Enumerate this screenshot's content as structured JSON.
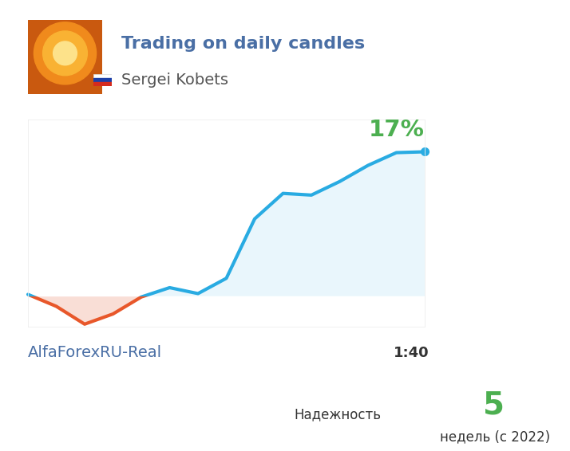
{
  "chart_data": {
    "type": "line",
    "title": "Trading on daily candles",
    "categories": [
      null,
      null,
      null,
      null,
      null,
      null,
      null,
      null,
      null,
      null,
      null,
      null,
      null,
      null,
      null
    ],
    "values": [
      0.2,
      -1.2,
      -3.3,
      -2.1,
      -0.1,
      1.0,
      0.3,
      2.1,
      9.1,
      12.1,
      11.9,
      13.5,
      15.4,
      16.9,
      17
    ],
    "value_labels": [
      null,
      null,
      null,
      null,
      null,
      null,
      null,
      null,
      null,
      null,
      null,
      null,
      null,
      null,
      "17%"
    ],
    "color": "#29abe2",
    "ylim": [
      -3.6,
      20.8
    ],
    "yticks": [],
    "grid": false,
    "tick_labels": false
  },
  "card": {
    "author": "Sergei Kobets",
    "account": "AlfaForexRU-Real",
    "leverage": "1:40",
    "reliability": "Надежность",
    "weeks": 5,
    "weeks_note": "недель (с 2022)"
  }
}
